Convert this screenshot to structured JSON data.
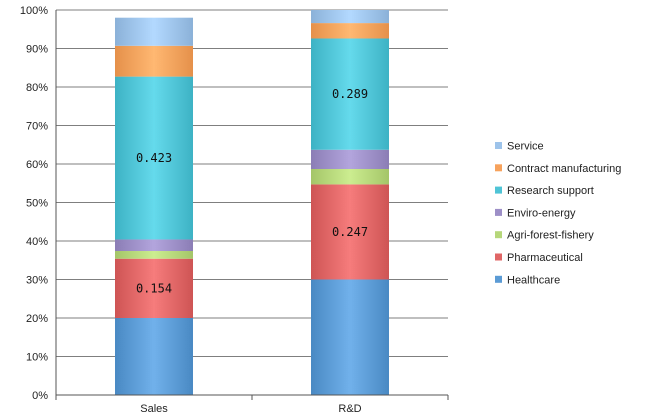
{
  "chart_data": {
    "type": "bar",
    "stacked": true,
    "percent_stacked": true,
    "categories": [
      "Sales",
      "R&D"
    ],
    "ylim": [
      0,
      1
    ],
    "yticks": [
      "0%",
      "10%",
      "20%",
      "30%",
      "40%",
      "50%",
      "60%",
      "70%",
      "80%",
      "90%",
      "100%"
    ],
    "xlabel": "",
    "ylabel": "",
    "title": "",
    "legend_position": "right",
    "grid": true,
    "series": [
      {
        "name": "Healthcare",
        "color": "#5b9bd5",
        "values": [
          0.2,
          0.3
        ]
      },
      {
        "name": "Pharmaceutical",
        "color": "#e06666",
        "values": [
          0.154,
          0.247
        ]
      },
      {
        "name": "Agri-forest-fishery",
        "color": "#b6d77a",
        "values": [
          0.02,
          0.04
        ]
      },
      {
        "name": "Enviro-energy",
        "color": "#9d8fc7",
        "values": [
          0.03,
          0.05
        ]
      },
      {
        "name": "Research support",
        "color": "#4fc4d6",
        "values": [
          0.423,
          0.289
        ]
      },
      {
        "name": "Contract manufacturing",
        "color": "#f7a25c",
        "values": [
          0.08,
          0.04
        ]
      },
      {
        "name": "Service",
        "color": "#9dc3ea",
        "values": [
          0.073,
          0.034
        ]
      }
    ],
    "data_labels": [
      {
        "series": "Pharmaceutical",
        "category": "Sales",
        "text": "0.154"
      },
      {
        "series": "Research support",
        "category": "Sales",
        "text": "0.423"
      },
      {
        "series": "Pharmaceutical",
        "category": "R&D",
        "text": "0.247"
      },
      {
        "series": "Research support",
        "category": "R&D",
        "text": "0.289"
      }
    ]
  }
}
